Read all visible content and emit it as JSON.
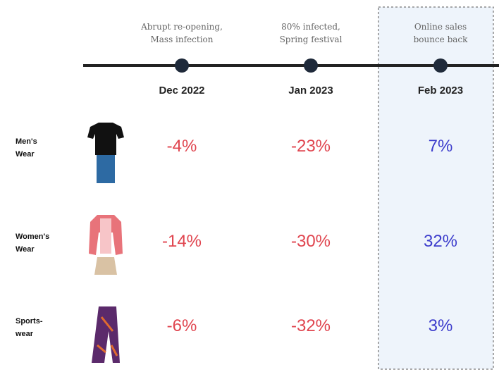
{
  "columns": [
    {
      "annotation": [
        "Abrupt re-opening,",
        "Mass infection"
      ],
      "date": "Dec 2022"
    },
    {
      "annotation": [
        "80% infected,",
        "Spring festival"
      ],
      "date": "Jan 2023"
    },
    {
      "annotation": [
        "Online sales",
        "bounce back"
      ],
      "date": "Feb 2023"
    }
  ],
  "rows": [
    {
      "label": [
        "Men's",
        "Wear"
      ],
      "values": [
        "-4%",
        "-23%",
        "7%"
      ]
    },
    {
      "label": [
        "Women's",
        "Wear"
      ],
      "values": [
        "-14%",
        "-30%",
        "32%"
      ]
    },
    {
      "label": [
        "Sports-",
        "wear"
      ],
      "values": [
        "-6%",
        "-32%",
        "3%"
      ]
    }
  ]
}
